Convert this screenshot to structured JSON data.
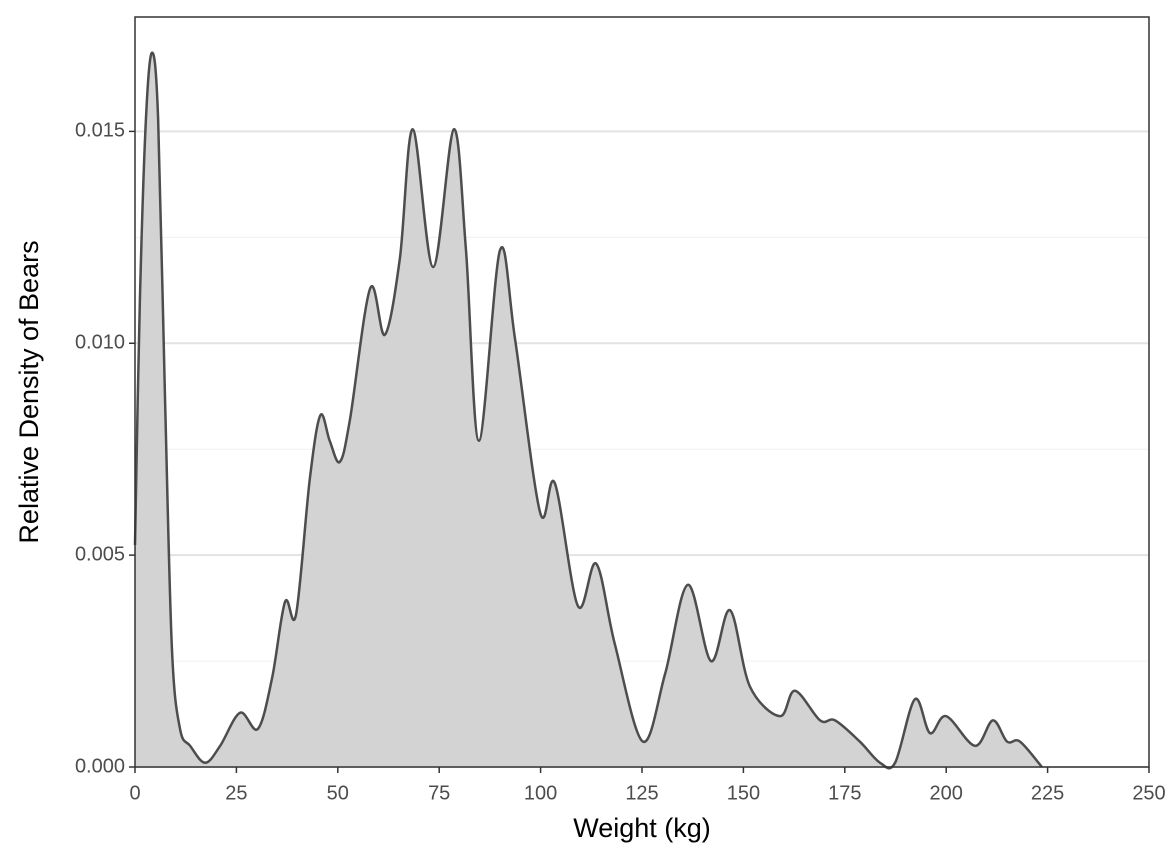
{
  "chart_data": {
    "type": "area",
    "x_label": "Weight (kg)",
    "y_label": "Relative Density of Bears",
    "x": [
      0,
      1.2,
      2.7,
      4.2,
      5.7,
      7.4,
      9.1,
      11.1,
      13.6,
      17.3,
      21,
      25.9,
      30.3,
      33.8,
      37,
      39.7,
      43.1,
      45.7,
      48,
      50.5,
      53,
      58,
      61.6,
      65.3,
      68.5,
      73.5,
      78.6,
      81.6,
      84.8,
      90,
      93.7,
      99.9,
      103.5,
      109.2,
      113.7,
      118.3,
      125.2,
      130.7,
      136.3,
      142,
      146.7,
      151.6,
      159,
      162.7,
      168.9,
      172.6,
      178.7,
      183.7,
      187.4,
      192.3,
      196,
      200,
      207.1,
      211.5,
      215,
      218.2,
      223.6
    ],
    "values": [
      0.00524,
      0.011,
      0.0153,
      0.01686,
      0.0153,
      0.0087,
      0.0028,
      0.0009,
      0.0005,
      0.0001,
      0.0005,
      0.00128,
      0.0009,
      0.0021,
      0.0039,
      0.0036,
      0.0068,
      0.0083,
      0.0077,
      0.0072,
      0.0082,
      0.0113,
      0.0102,
      0.012,
      0.01505,
      0.0118,
      0.01505,
      0.0122,
      0.0077,
      0.0122,
      0.0101,
      0.006,
      0.0067,
      0.0038,
      0.0048,
      0.0029,
      0.0006,
      0.0022,
      0.0043,
      0.0025,
      0.0037,
      0.0019,
      0.0012,
      0.0018,
      0.0011,
      0.0011,
      0.0006,
      0.0001,
      0.0001,
      0.0016,
      0.0008,
      0.0012,
      0.0005,
      0.0011,
      0.0006,
      0.0006,
      0
    ],
    "fill": "#d3d3d3",
    "color": "#4d4d4d",
    "xlim": [
      0,
      250
    ],
    "xticks": [
      0,
      25,
      50,
      75,
      100,
      125,
      150,
      175,
      200,
      225,
      250
    ],
    "ylim": [
      0,
      0.0177
    ],
    "yticks": [
      {
        "value": 0,
        "label": "0.000"
      },
      {
        "value": 0.005,
        "label": "0.005"
      },
      {
        "value": 0.01,
        "label": "0.010"
      },
      {
        "value": 0.015,
        "label": "0.015"
      }
    ],
    "minor_yticks": [
      0.0025,
      0.0075,
      0.0125
    ],
    "grid": true
  }
}
